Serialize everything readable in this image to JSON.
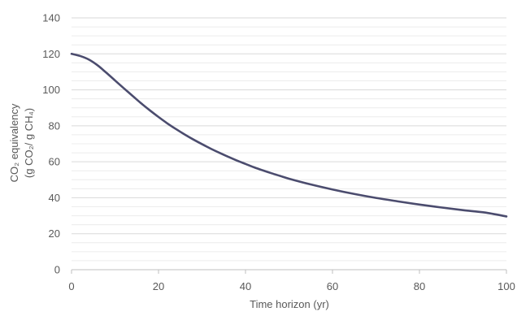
{
  "chart_data": {
    "type": "line",
    "title": "",
    "xlabel": "Time horizon (yr)",
    "ylabel_line1": "CO₂ equivalency",
    "ylabel_line2": "(g CO₂/ g CH₄)",
    "xlim": [
      0,
      100
    ],
    "ylim": [
      0,
      140
    ],
    "x_ticks": [
      0,
      20,
      40,
      60,
      80,
      100
    ],
    "y_ticks": [
      0,
      20,
      40,
      60,
      80,
      100,
      120,
      140
    ],
    "grid": true,
    "legend": "none",
    "series_color": "#4b4c6e",
    "grid_color": "#d9d9d9",
    "x": [
      0,
      2,
      4,
      6,
      8,
      10,
      12,
      14,
      16,
      18,
      20,
      22,
      24,
      26,
      28,
      30,
      32,
      34,
      36,
      38,
      40,
      42,
      44,
      46,
      48,
      50,
      55,
      60,
      65,
      70,
      75,
      80,
      85,
      90,
      95,
      100
    ],
    "series": [
      {
        "values": [
          120,
          118.8,
          116.8,
          113.6,
          109.5,
          105.2,
          100.9,
          96.7,
          92.5,
          88.6,
          84.9,
          81.4,
          78.2,
          75.2,
          72.4,
          69.8,
          67.3,
          65.0,
          62.8,
          60.7,
          58.8,
          56.9,
          55.2,
          53.6,
          52.1,
          50.6,
          47.4,
          44.6,
          42.1,
          39.9,
          38.0,
          36.2,
          34.6,
          33.1,
          31.8,
          29.6
        ]
      }
    ]
  }
}
